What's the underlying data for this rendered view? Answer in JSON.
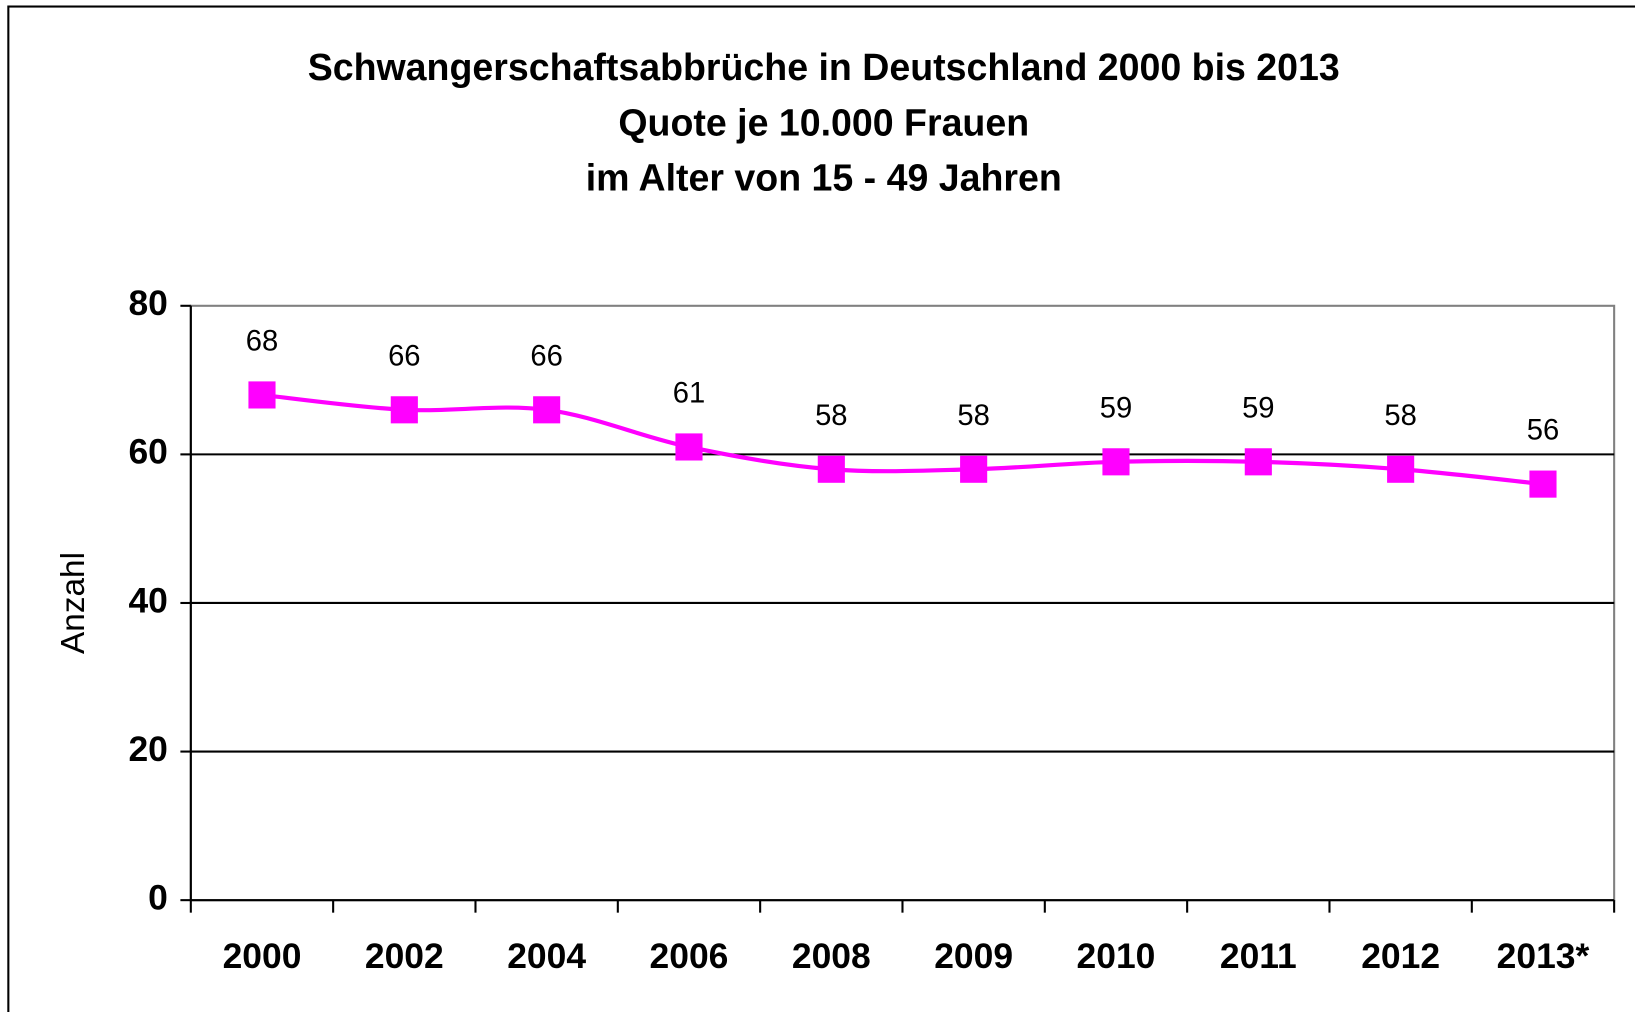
{
  "chart_data": {
    "type": "line",
    "title": [
      "Schwangerschaftsabbrüche in Deutschland 2000 bis 2013",
      "Quote  je 10.000 Frauen",
      "im Alter von 15 - 49 Jahren"
    ],
    "y_label": "Anzahl",
    "categories": [
      "2000",
      "2002",
      "2004",
      "2006",
      "2008",
      "2009",
      "2010",
      "2011",
      "2012",
      "2013*"
    ],
    "values": [
      68,
      66,
      66,
      61,
      58,
      58,
      59,
      59,
      58,
      56
    ],
    "color": "#ff00ff",
    "ylim": [
      0,
      80
    ],
    "yticks": [
      0,
      20,
      40,
      60,
      80
    ],
    "grid": true
  }
}
